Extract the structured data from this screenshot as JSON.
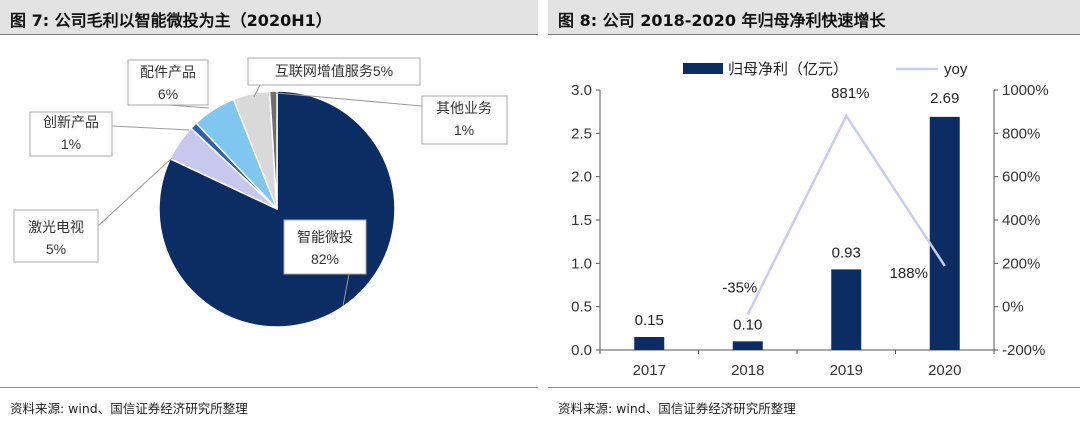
{
  "colors": {
    "navy": "#0b2d63",
    "light_blue": "#7fc7ef",
    "lavender": "#c6c8ee",
    "gray": "#d9d9d9",
    "dark_gray": "#6e6e6e",
    "royal_blue": "#2f5fae",
    "line": "#c9ccf2"
  },
  "left_panel": {
    "title": "图 7: 公司毛利以智能微投为主（2020H1）",
    "source": "资料来源: wind、国信证券经济研究所整理"
  },
  "right_panel": {
    "title": "图 8: 公司 2018-2020 年归母净利快速增长",
    "source": "资料来源: wind、国信证券经济研究所整理"
  },
  "chart_data": [
    {
      "type": "pie",
      "title": "公司毛利以智能微投为主（2020H1）",
      "slices": [
        {
          "name": "智能微投",
          "value": 82,
          "label": "82%",
          "color": "#0b2d63"
        },
        {
          "name": "激光电视",
          "value": 5,
          "label": "5%",
          "color": "#c6c8ee"
        },
        {
          "name": "创新产品",
          "value": 1,
          "label": "1%",
          "color": "#2f5fae"
        },
        {
          "name": "配件产品",
          "value": 6,
          "label": "6%",
          "color": "#7fc7ef"
        },
        {
          "name": "互联网增值服务",
          "value": 5,
          "label": "5%",
          "color": "#d9d9d9"
        },
        {
          "name": "其他业务",
          "value": 1,
          "label": "1%",
          "color": "#6e6e6e"
        }
      ]
    },
    {
      "type": "bar",
      "title": "公司 2018-2020 年归母净利快速增长",
      "categories": [
        "2017",
        "2018",
        "2019",
        "2020"
      ],
      "series": [
        {
          "name": "归母净利（亿元）",
          "kind": "bar",
          "axis": "left",
          "values": [
            0.15,
            0.1,
            0.93,
            2.69
          ],
          "labels": [
            "0.15",
            "0.10",
            "0.93",
            "2.69"
          ]
        },
        {
          "name": "yoy",
          "kind": "line",
          "axis": "right",
          "values": [
            null,
            -35,
            881,
            188
          ],
          "labels": [
            "",
            "-35%",
            "881%",
            "188%"
          ]
        }
      ],
      "ylim_left": [
        0,
        3
      ],
      "yticks_left": [
        "0.0",
        "0.5",
        "1.0",
        "1.5",
        "2.0",
        "2.5",
        "3.0"
      ],
      "ylim_right": [
        -200,
        1000
      ],
      "yticks_right": [
        "-200%",
        "0%",
        "200%",
        "400%",
        "600%",
        "800%",
        "1000%"
      ],
      "legend": "top"
    }
  ]
}
